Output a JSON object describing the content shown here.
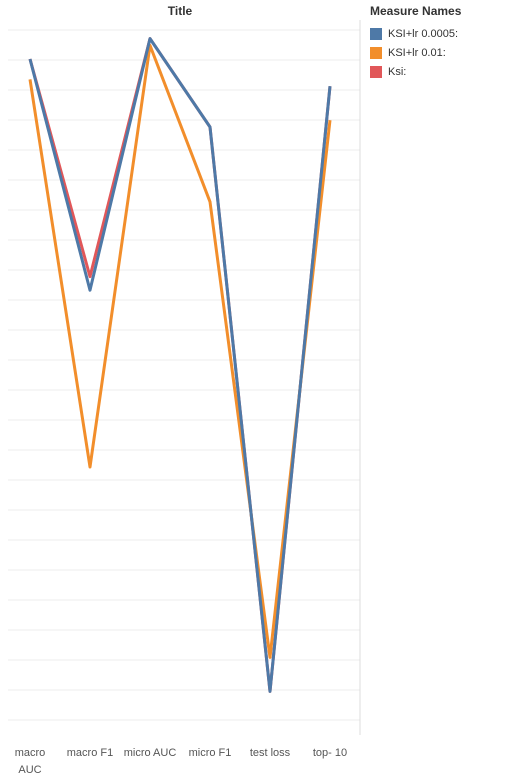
{
  "chart_data": {
    "type": "line",
    "title": "Title",
    "categories": [
      [
        "macro",
        "AUC"
      ],
      [
        "macro F1"
      ],
      [
        "micro AUC"
      ],
      [
        "micro F1"
      ],
      [
        "test loss"
      ],
      [
        "top- 10"
      ]
    ],
    "ylim": [
      0,
      100
    ],
    "grid": true,
    "legend_position": "right",
    "legend_title": "Measure Names",
    "series": [
      {
        "name": "KSI+lr 0.0005:",
        "color": "#4e79a7",
        "values": [
          95,
          61,
          98,
          85,
          2,
          91
        ]
      },
      {
        "name": "KSI+lr 0.01:",
        "color": "#f28e2b",
        "values": [
          92,
          35,
          97,
          74,
          7,
          86
        ]
      },
      {
        "name": "Ksi:",
        "color": "#e15759",
        "values": [
          95,
          63,
          98,
          85,
          2,
          91
        ]
      }
    ]
  }
}
